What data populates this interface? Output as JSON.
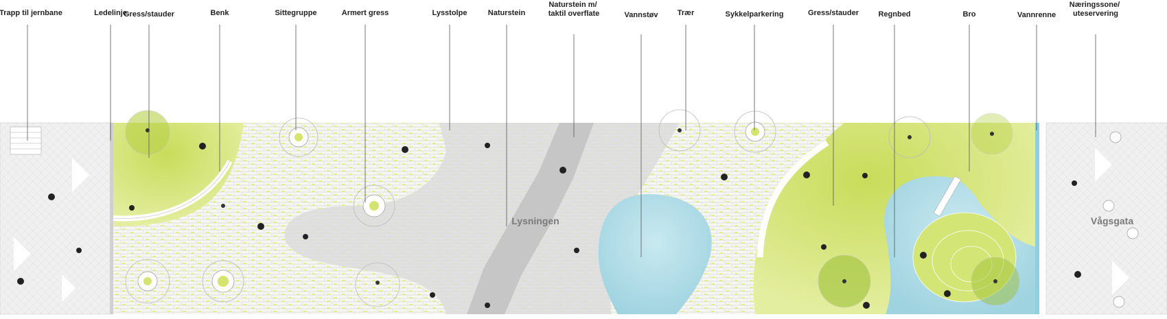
{
  "labels": {
    "trapp": "Trapp til jernbane",
    "ledelinje": "Ledelinje",
    "gress1": "Gress/stauder",
    "benk": "Benk",
    "sittegruppe": "Sittegruppe",
    "armert": "Armert gress",
    "lysstolpe": "Lysstolpe",
    "naturstein": "Naturstein",
    "naturstein_taktil": [
      "Naturstein m/",
      "taktil overflate"
    ],
    "vannstov": "Vannstøv",
    "traer": "Trær",
    "sykkel": "Sykkelparkering",
    "gress2": "Gress/stauder",
    "regnbed": "Regnbed",
    "bro": "Bro",
    "vannrenne": "Vannrenne",
    "naering": [
      "Næringssone/",
      "uteservering"
    ]
  },
  "map": {
    "place_name": "Lysningen",
    "street_name": "Vågsgata"
  },
  "colors": {
    "grass": "#d4e46e",
    "grass_light": "#e6efa8",
    "water": "#a9dbe6",
    "paving": "#f3f3f1",
    "stone": "#d9d9d9",
    "stone_dark": "#c4c4c4"
  }
}
